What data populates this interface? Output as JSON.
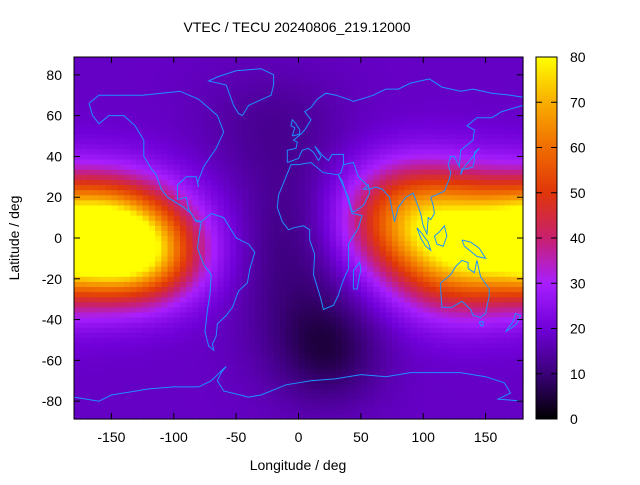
{
  "chart_data": {
    "type": "heatmap",
    "title": "VTEC / TECU 20240806_219.12000",
    "xlabel": "Longitude / deg",
    "ylabel": "Latitude / deg",
    "xlim": [
      -180,
      180
    ],
    "ylim": [
      -88.75,
      88.75
    ],
    "xticks": [
      -150,
      -100,
      -50,
      0,
      50,
      100,
      150
    ],
    "yticks": [
      -80,
      -60,
      -40,
      -20,
      0,
      20,
      40,
      60,
      80
    ],
    "colorbar": {
      "range": [
        0,
        80
      ],
      "ticks": [
        0,
        10,
        20,
        30,
        40,
        50,
        60,
        70,
        80
      ],
      "palette": [
        "#000000",
        "#3a0078",
        "#7000d8",
        "#a81fff",
        "#c8206e",
        "#e0360a",
        "#f06d00",
        "#f9ae00",
        "#ffff00"
      ]
    },
    "coastline_color": "#1e90ff",
    "grid": false,
    "field_features": [
      {
        "lon": -150,
        "lat": 0,
        "sx": 40,
        "sy": 18,
        "amp": 50
      },
      {
        "lon": -120,
        "lat": -12,
        "sx": 30,
        "sy": 14,
        "amp": 18
      },
      {
        "lon": 160,
        "lat": 0,
        "sx": 60,
        "sy": 20,
        "amp": 45
      },
      {
        "lon": 90,
        "lat": 12,
        "sx": 40,
        "sy": 18,
        "amp": 32
      },
      {
        "lon": 125,
        "lat": -15,
        "sx": 35,
        "sy": 18,
        "amp": 18
      },
      {
        "lon": 25,
        "lat": -55,
        "sx": 30,
        "sy": 18,
        "amp": -10
      },
      {
        "lon": 0,
        "lat": -20,
        "sx": 35,
        "sy": 30,
        "amp": -7
      },
      {
        "lon": -20,
        "lat": 55,
        "sx": 40,
        "sy": 20,
        "amp": -5
      },
      {
        "lon": 10,
        "lat": 12,
        "sx": 40,
        "sy": 20,
        "amp": -4
      }
    ],
    "field_base": 18
  }
}
